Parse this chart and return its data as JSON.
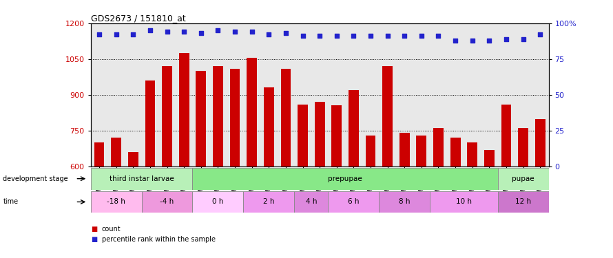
{
  "title": "GDS2673 / 151810_at",
  "samples": [
    "GSM67088",
    "GSM67089",
    "GSM67090",
    "GSM67091",
    "GSM67092",
    "GSM67093",
    "GSM67094",
    "GSM67095",
    "GSM67096",
    "GSM67097",
    "GSM67098",
    "GSM67099",
    "GSM67100",
    "GSM67101",
    "GSM67102",
    "GSM67103",
    "GSM67105",
    "GSM67106",
    "GSM67107",
    "GSM67108",
    "GSM67109",
    "GSM67111",
    "GSM67113",
    "GSM67114",
    "GSM67115",
    "GSM67116",
    "GSM67117"
  ],
  "counts": [
    700,
    720,
    660,
    960,
    1020,
    1075,
    1000,
    1020,
    1010,
    1055,
    930,
    1010,
    860,
    870,
    855,
    920,
    730,
    1020,
    740,
    730,
    760,
    720,
    700,
    670,
    860,
    760,
    800
  ],
  "percentiles": [
    92,
    92,
    92,
    95,
    94,
    94,
    93,
    95,
    94,
    94,
    92,
    93,
    91,
    91,
    91,
    91,
    91,
    91,
    91,
    91,
    91,
    88,
    88,
    88,
    89,
    89,
    92
  ],
  "bar_color": "#cc0000",
  "dot_color": "#2222cc",
  "ylim_left": [
    600,
    1200
  ],
  "ylim_right": [
    0,
    100
  ],
  "yticks_left": [
    600,
    750,
    900,
    1050,
    1200
  ],
  "yticks_right": [
    0,
    25,
    50,
    75,
    100
  ],
  "grid_lines": [
    750,
    900,
    1050
  ],
  "dev_stages": [
    {
      "label": "third instar larvae",
      "start": 0,
      "end": 5,
      "color": "#b8f0b8"
    },
    {
      "label": "prepupae",
      "start": 5,
      "end": 24,
      "color": "#88e888"
    },
    {
      "label": "pupae",
      "start": 24,
      "end": 27,
      "color": "#b8f0b8"
    }
  ],
  "time_periods": [
    {
      "label": "-18 h",
      "start": 0,
      "end": 3,
      "color": "#ffaaee"
    },
    {
      "label": "-4 h",
      "start": 3,
      "end": 5,
      "color": "#ee88dd"
    },
    {
      "label": "0 h",
      "start": 5,
      "end": 8,
      "color": "#ffccff"
    },
    {
      "label": "2 h",
      "start": 8,
      "end": 11,
      "color": "#ee99ee"
    },
    {
      "label": "4 h",
      "start": 11,
      "end": 14,
      "color": "#dd77cc"
    },
    {
      "label": "6 h",
      "start": 14,
      "end": 17,
      "color": "#ee99ee"
    },
    {
      "label": "8 h",
      "start": 17,
      "end": 20,
      "color": "#dd77cc"
    },
    {
      "label": "10 h",
      "start": 20,
      "end": 24,
      "color": "#ee99ee"
    },
    {
      "label": "12 h",
      "start": 24,
      "end": 27,
      "color": "#cc66bb"
    }
  ],
  "bg_color": "#e8e8e8"
}
